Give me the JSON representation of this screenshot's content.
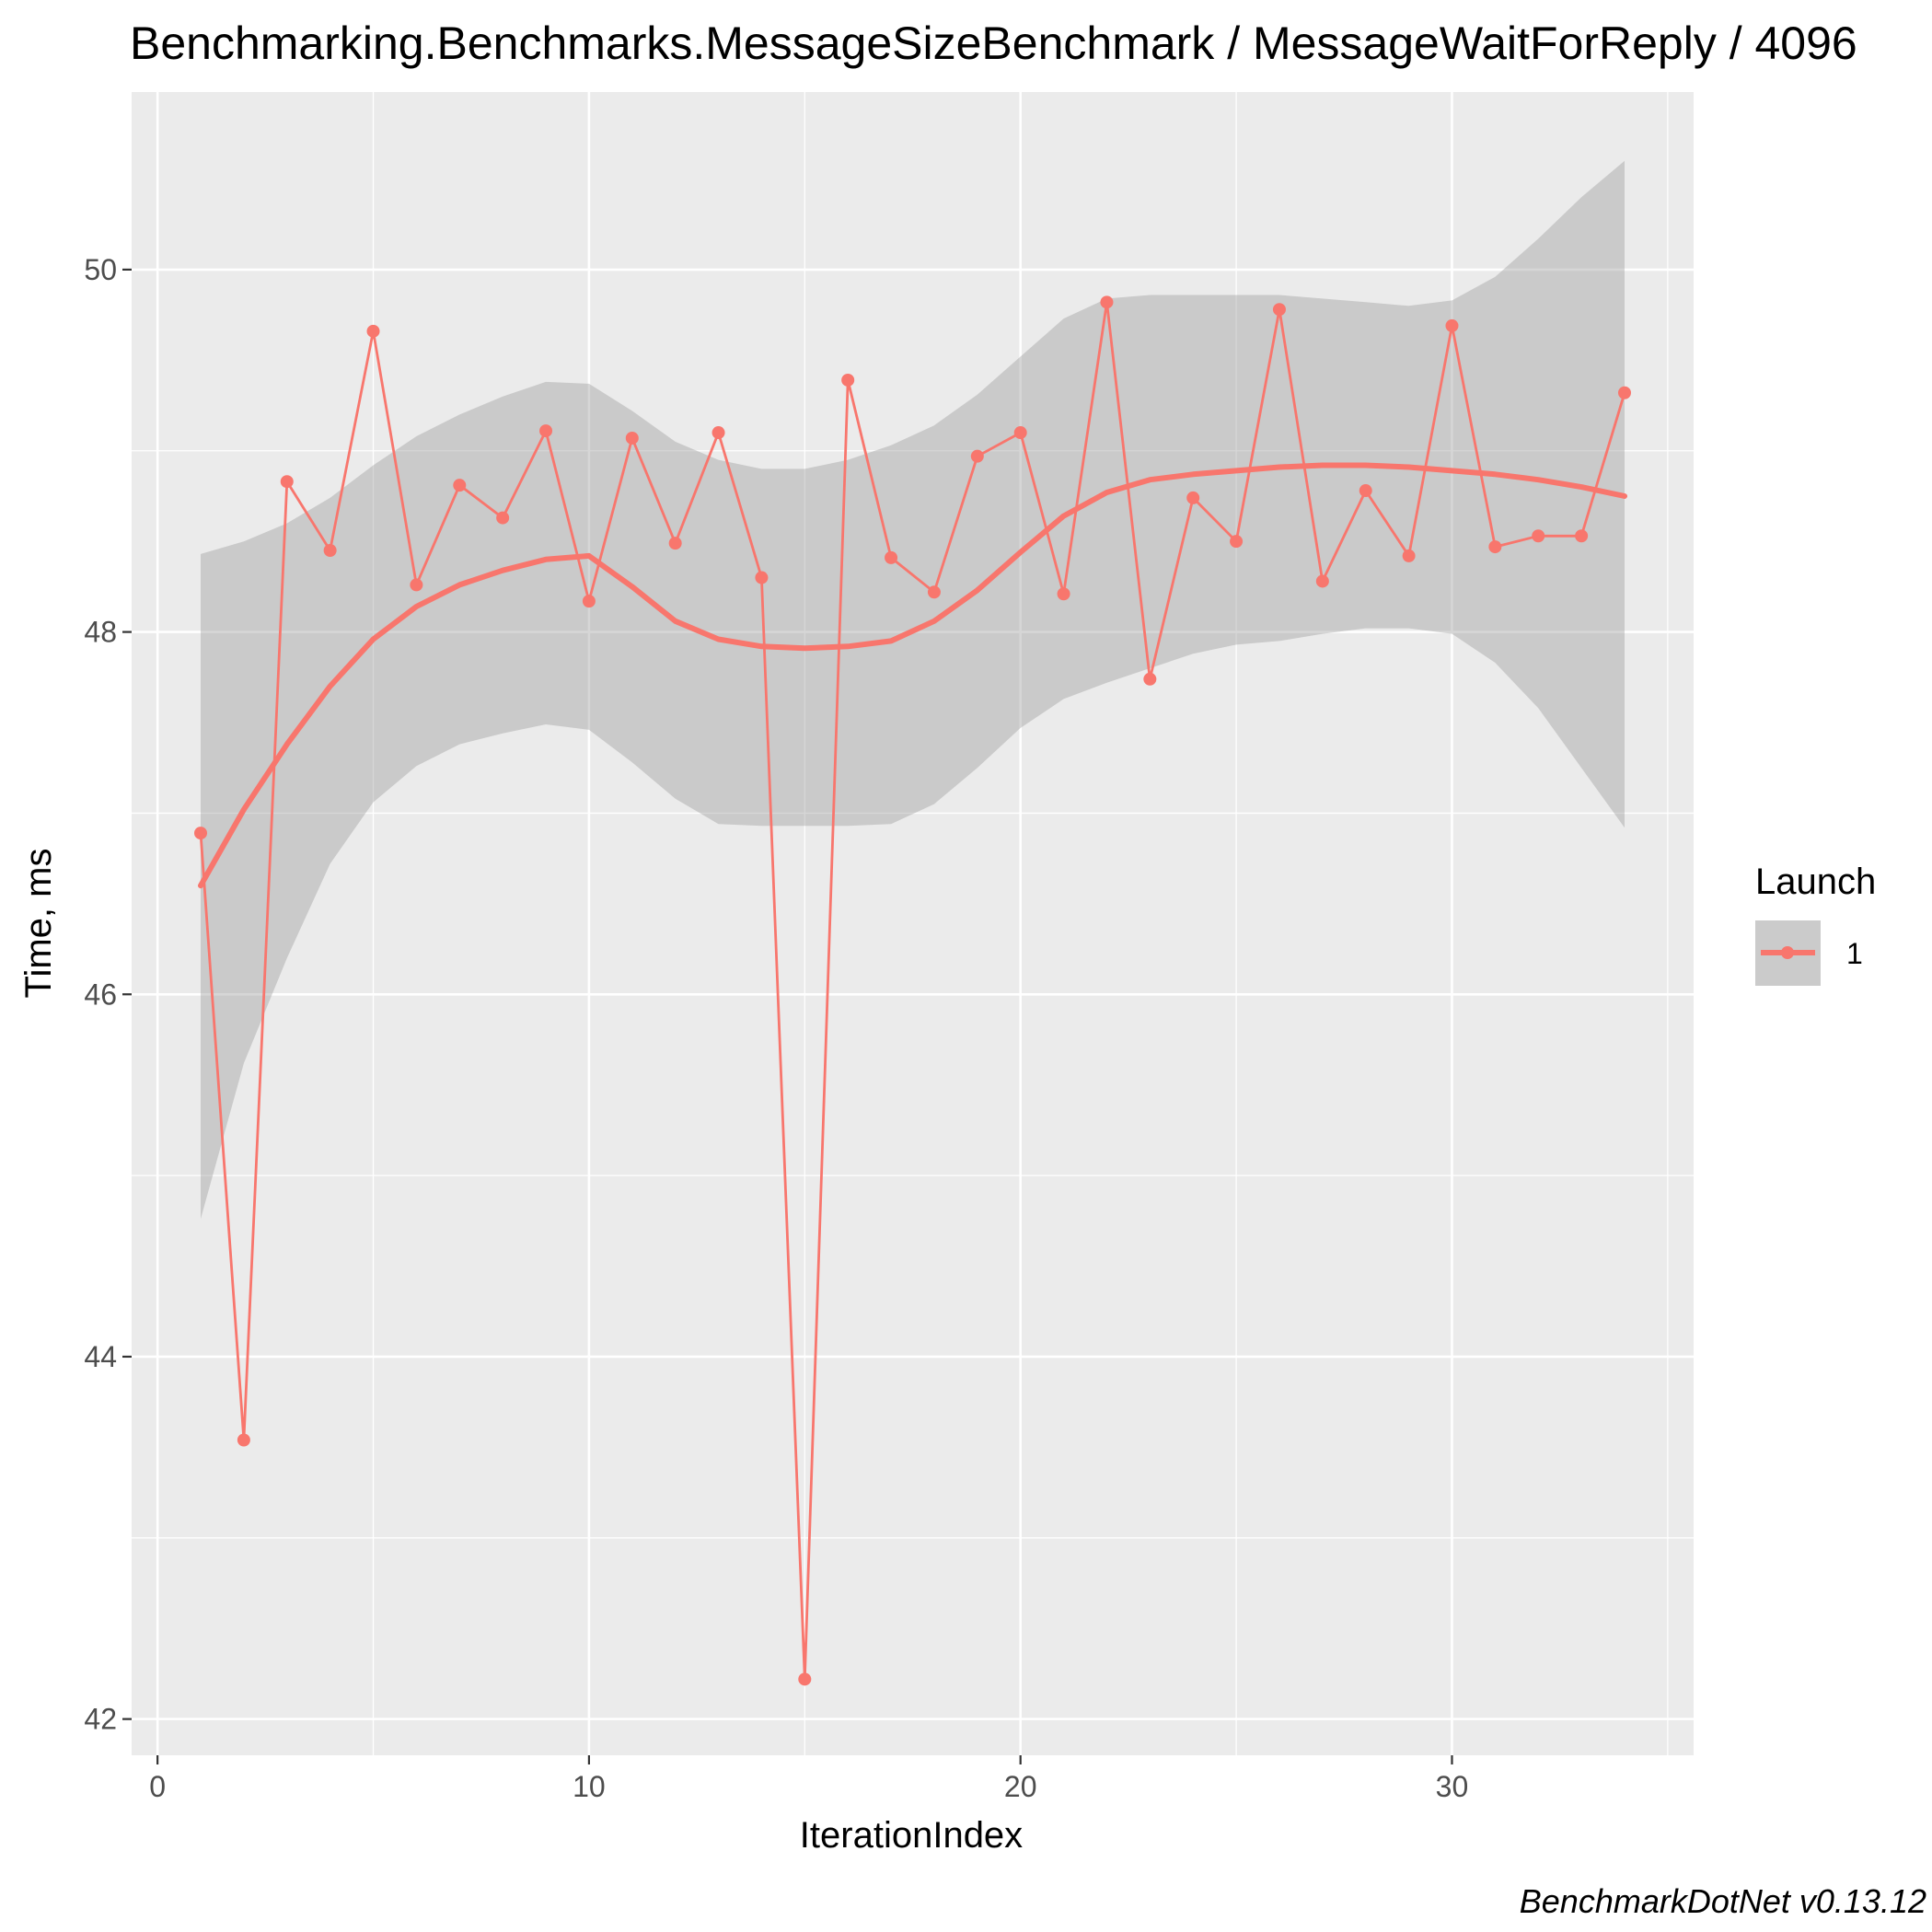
{
  "chart_data": {
    "type": "line",
    "title": "Benchmarking.Benchmarks.MessageSizeBenchmark / MessageWaitForReply / 4096",
    "xlabel": "IterationIndex",
    "ylabel": "Time, ms",
    "xlim": [
      -0.6,
      35.6
    ],
    "ylim": [
      41.8,
      50.98
    ],
    "x_ticks": [
      0,
      10,
      20,
      30
    ],
    "y_ticks": [
      42,
      44,
      46,
      48,
      50
    ],
    "y_minor_ticks": [
      43,
      45,
      47,
      49
    ],
    "x_minor_ticks": [
      5,
      15,
      25,
      35
    ],
    "grid": true,
    "legend": {
      "title": "Launch",
      "position": "right",
      "entries": [
        "1"
      ]
    },
    "caption": "BenchmarkDotNet v0.13.12",
    "colors": {
      "series": "#f8766d",
      "smooth": "#f8766d",
      "ribbon": "#999999",
      "panel": "#ebebeb",
      "grid": "#ffffff"
    },
    "series": [
      {
        "name": "1",
        "x": [
          1,
          2,
          3,
          4,
          5,
          6,
          7,
          8,
          9,
          10,
          11,
          12,
          13,
          14,
          15,
          16,
          17,
          18,
          19,
          20,
          21,
          22,
          23,
          24,
          25,
          26,
          27,
          28,
          29,
          30,
          31,
          32,
          33,
          34
        ],
        "values": [
          46.89,
          43.54,
          48.83,
          48.45,
          49.66,
          48.26,
          48.81,
          48.63,
          49.11,
          48.17,
          49.07,
          48.49,
          49.1,
          48.3,
          42.22,
          49.39,
          48.41,
          48.22,
          48.97,
          49.1,
          48.21,
          49.82,
          47.74,
          48.74,
          48.5,
          49.78,
          48.28,
          48.78,
          48.42,
          49.69,
          48.47,
          48.53,
          48.53,
          49.32
        ]
      }
    ],
    "smooth": {
      "x": [
        1,
        2,
        3,
        4,
        5,
        6,
        7,
        8,
        9,
        10,
        11,
        12,
        13,
        14,
        15,
        16,
        17,
        18,
        19,
        20,
        21,
        22,
        23,
        24,
        25,
        26,
        27,
        28,
        29,
        30,
        31,
        32,
        33,
        34
      ],
      "y": [
        46.6,
        47.02,
        47.38,
        47.7,
        47.96,
        48.14,
        48.26,
        48.34,
        48.4,
        48.42,
        48.25,
        48.06,
        47.96,
        47.92,
        47.91,
        47.92,
        47.95,
        48.06,
        48.23,
        48.44,
        48.64,
        48.77,
        48.84,
        48.87,
        48.89,
        48.91,
        48.92,
        48.92,
        48.91,
        48.89,
        48.87,
        48.84,
        48.8,
        48.75
      ],
      "upper": [
        48.43,
        48.5,
        48.6,
        48.74,
        48.92,
        49.08,
        49.2,
        49.3,
        49.38,
        49.37,
        49.22,
        49.05,
        48.95,
        48.9,
        48.9,
        48.95,
        49.03,
        49.14,
        49.31,
        49.52,
        49.73,
        49.84,
        49.86,
        49.86,
        49.86,
        49.86,
        49.84,
        49.82,
        49.8,
        49.83,
        49.96,
        50.17,
        50.4,
        50.6
      ],
      "lower": [
        44.76,
        45.62,
        46.2,
        46.72,
        47.06,
        47.26,
        47.38,
        47.44,
        47.49,
        47.46,
        47.28,
        47.08,
        46.94,
        46.93,
        46.93,
        46.93,
        46.94,
        47.05,
        47.25,
        47.47,
        47.63,
        47.72,
        47.8,
        47.88,
        47.93,
        47.95,
        47.99,
        48.02,
        48.02,
        47.99,
        47.83,
        47.58,
        47.25,
        46.92
      ]
    }
  }
}
